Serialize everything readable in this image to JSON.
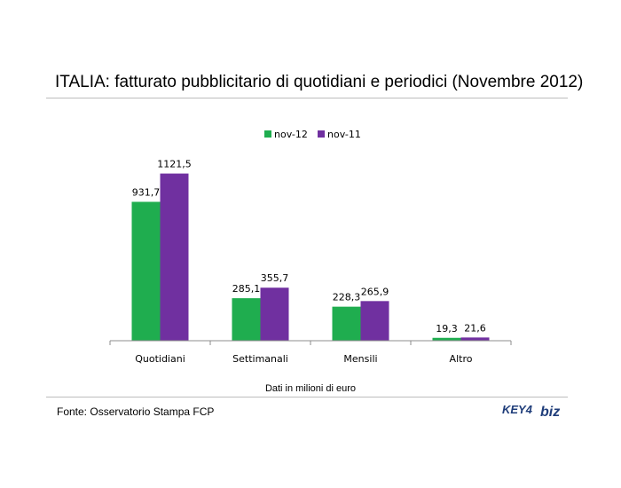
{
  "header": {
    "title": "ITALIA: fatturato pubblicitario di quotidiani e periodici (Novembre 2012)"
  },
  "footer": {
    "source": "Fonte: Osservatorio Stampa FCP",
    "logo_text_left": "KEY4",
    "logo_text_right": "biz"
  },
  "colors": {
    "nov12": "#1fad4f",
    "nov11": "#7030a0",
    "axis": "#8c8c8c",
    "logo": "#1f3d7a"
  },
  "chart_data": {
    "type": "bar",
    "title": "ITALIA: fatturato pubblicitario di quotidiani e periodici (Novembre 2012)",
    "xlabel": "Dati in milioni di euro",
    "ylabel": "",
    "ylim": [
      0,
      1250
    ],
    "grid": false,
    "legend_position": "top-center",
    "categories": [
      "Quotidiani",
      "Settimanali",
      "Mensili",
      "Altro"
    ],
    "series": [
      {
        "name": "nov-12",
        "values": [
          931.7,
          285.1,
          228.3,
          19.3
        ],
        "labels": [
          "931,7",
          "285,1",
          "228,3",
          "19,3"
        ]
      },
      {
        "name": "nov-11",
        "values": [
          1121.5,
          355.7,
          265.9,
          21.6
        ],
        "labels": [
          "1121,5",
          "355,7",
          "265,9",
          "21,6"
        ]
      }
    ]
  }
}
